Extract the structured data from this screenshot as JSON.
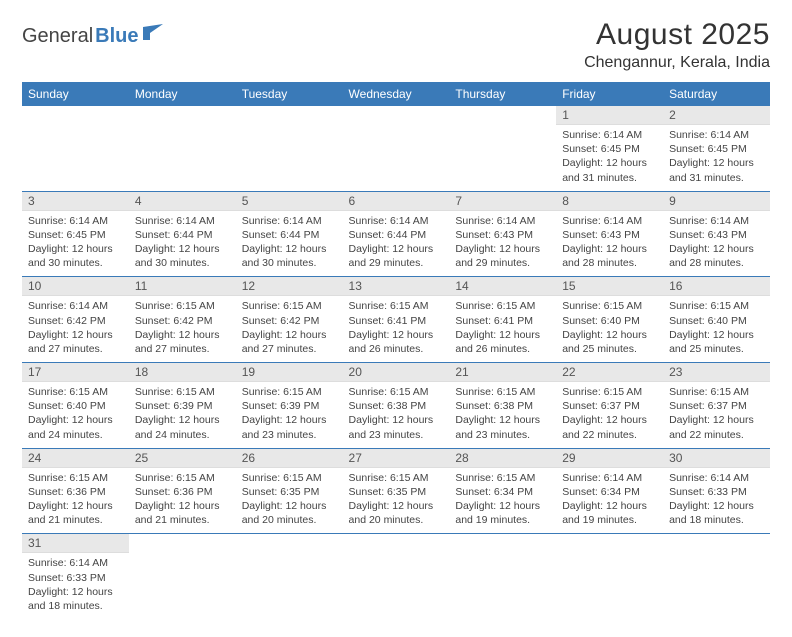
{
  "logo": {
    "text1": "General",
    "text2": "Blue"
  },
  "title": "August 2025",
  "location": "Chengannur, Kerala, India",
  "colors": {
    "header_bg": "#3a7ab8",
    "header_fg": "#ffffff",
    "daynum_bg": "#e8e8e8",
    "border": "#3a7ab8",
    "text": "#444444"
  },
  "weekdays": [
    "Sunday",
    "Monday",
    "Tuesday",
    "Wednesday",
    "Thursday",
    "Friday",
    "Saturday"
  ],
  "weeks": [
    [
      null,
      null,
      null,
      null,
      null,
      {
        "n": "1",
        "rise": "Sunrise: 6:14 AM",
        "set": "Sunset: 6:45 PM",
        "d1": "Daylight: 12 hours",
        "d2": "and 31 minutes."
      },
      {
        "n": "2",
        "rise": "Sunrise: 6:14 AM",
        "set": "Sunset: 6:45 PM",
        "d1": "Daylight: 12 hours",
        "d2": "and 31 minutes."
      }
    ],
    [
      {
        "n": "3",
        "rise": "Sunrise: 6:14 AM",
        "set": "Sunset: 6:45 PM",
        "d1": "Daylight: 12 hours",
        "d2": "and 30 minutes."
      },
      {
        "n": "4",
        "rise": "Sunrise: 6:14 AM",
        "set": "Sunset: 6:44 PM",
        "d1": "Daylight: 12 hours",
        "d2": "and 30 minutes."
      },
      {
        "n": "5",
        "rise": "Sunrise: 6:14 AM",
        "set": "Sunset: 6:44 PM",
        "d1": "Daylight: 12 hours",
        "d2": "and 30 minutes."
      },
      {
        "n": "6",
        "rise": "Sunrise: 6:14 AM",
        "set": "Sunset: 6:44 PM",
        "d1": "Daylight: 12 hours",
        "d2": "and 29 minutes."
      },
      {
        "n": "7",
        "rise": "Sunrise: 6:14 AM",
        "set": "Sunset: 6:43 PM",
        "d1": "Daylight: 12 hours",
        "d2": "and 29 minutes."
      },
      {
        "n": "8",
        "rise": "Sunrise: 6:14 AM",
        "set": "Sunset: 6:43 PM",
        "d1": "Daylight: 12 hours",
        "d2": "and 28 minutes."
      },
      {
        "n": "9",
        "rise": "Sunrise: 6:14 AM",
        "set": "Sunset: 6:43 PM",
        "d1": "Daylight: 12 hours",
        "d2": "and 28 minutes."
      }
    ],
    [
      {
        "n": "10",
        "rise": "Sunrise: 6:14 AM",
        "set": "Sunset: 6:42 PM",
        "d1": "Daylight: 12 hours",
        "d2": "and 27 minutes."
      },
      {
        "n": "11",
        "rise": "Sunrise: 6:15 AM",
        "set": "Sunset: 6:42 PM",
        "d1": "Daylight: 12 hours",
        "d2": "and 27 minutes."
      },
      {
        "n": "12",
        "rise": "Sunrise: 6:15 AM",
        "set": "Sunset: 6:42 PM",
        "d1": "Daylight: 12 hours",
        "d2": "and 27 minutes."
      },
      {
        "n": "13",
        "rise": "Sunrise: 6:15 AM",
        "set": "Sunset: 6:41 PM",
        "d1": "Daylight: 12 hours",
        "d2": "and 26 minutes."
      },
      {
        "n": "14",
        "rise": "Sunrise: 6:15 AM",
        "set": "Sunset: 6:41 PM",
        "d1": "Daylight: 12 hours",
        "d2": "and 26 minutes."
      },
      {
        "n": "15",
        "rise": "Sunrise: 6:15 AM",
        "set": "Sunset: 6:40 PM",
        "d1": "Daylight: 12 hours",
        "d2": "and 25 minutes."
      },
      {
        "n": "16",
        "rise": "Sunrise: 6:15 AM",
        "set": "Sunset: 6:40 PM",
        "d1": "Daylight: 12 hours",
        "d2": "and 25 minutes."
      }
    ],
    [
      {
        "n": "17",
        "rise": "Sunrise: 6:15 AM",
        "set": "Sunset: 6:40 PM",
        "d1": "Daylight: 12 hours",
        "d2": "and 24 minutes."
      },
      {
        "n": "18",
        "rise": "Sunrise: 6:15 AM",
        "set": "Sunset: 6:39 PM",
        "d1": "Daylight: 12 hours",
        "d2": "and 24 minutes."
      },
      {
        "n": "19",
        "rise": "Sunrise: 6:15 AM",
        "set": "Sunset: 6:39 PM",
        "d1": "Daylight: 12 hours",
        "d2": "and 23 minutes."
      },
      {
        "n": "20",
        "rise": "Sunrise: 6:15 AM",
        "set": "Sunset: 6:38 PM",
        "d1": "Daylight: 12 hours",
        "d2": "and 23 minutes."
      },
      {
        "n": "21",
        "rise": "Sunrise: 6:15 AM",
        "set": "Sunset: 6:38 PM",
        "d1": "Daylight: 12 hours",
        "d2": "and 23 minutes."
      },
      {
        "n": "22",
        "rise": "Sunrise: 6:15 AM",
        "set": "Sunset: 6:37 PM",
        "d1": "Daylight: 12 hours",
        "d2": "and 22 minutes."
      },
      {
        "n": "23",
        "rise": "Sunrise: 6:15 AM",
        "set": "Sunset: 6:37 PM",
        "d1": "Daylight: 12 hours",
        "d2": "and 22 minutes."
      }
    ],
    [
      {
        "n": "24",
        "rise": "Sunrise: 6:15 AM",
        "set": "Sunset: 6:36 PM",
        "d1": "Daylight: 12 hours",
        "d2": "and 21 minutes."
      },
      {
        "n": "25",
        "rise": "Sunrise: 6:15 AM",
        "set": "Sunset: 6:36 PM",
        "d1": "Daylight: 12 hours",
        "d2": "and 21 minutes."
      },
      {
        "n": "26",
        "rise": "Sunrise: 6:15 AM",
        "set": "Sunset: 6:35 PM",
        "d1": "Daylight: 12 hours",
        "d2": "and 20 minutes."
      },
      {
        "n": "27",
        "rise": "Sunrise: 6:15 AM",
        "set": "Sunset: 6:35 PM",
        "d1": "Daylight: 12 hours",
        "d2": "and 20 minutes."
      },
      {
        "n": "28",
        "rise": "Sunrise: 6:15 AM",
        "set": "Sunset: 6:34 PM",
        "d1": "Daylight: 12 hours",
        "d2": "and 19 minutes."
      },
      {
        "n": "29",
        "rise": "Sunrise: 6:14 AM",
        "set": "Sunset: 6:34 PM",
        "d1": "Daylight: 12 hours",
        "d2": "and 19 minutes."
      },
      {
        "n": "30",
        "rise": "Sunrise: 6:14 AM",
        "set": "Sunset: 6:33 PM",
        "d1": "Daylight: 12 hours",
        "d2": "and 18 minutes."
      }
    ],
    [
      {
        "n": "31",
        "rise": "Sunrise: 6:14 AM",
        "set": "Sunset: 6:33 PM",
        "d1": "Daylight: 12 hours",
        "d2": "and 18 minutes."
      },
      null,
      null,
      null,
      null,
      null,
      null
    ]
  ]
}
